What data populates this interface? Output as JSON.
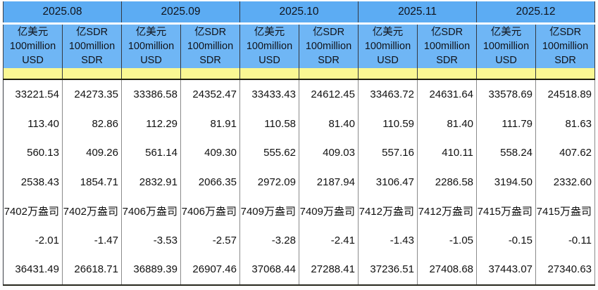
{
  "table": {
    "title_semantic": "official reserve assets monthly table",
    "months": [
      "2025.08",
      "2025.09",
      "2025.10",
      "2025.11",
      "2025.12"
    ],
    "units": {
      "usd": [
        "亿美元",
        "100million",
        "USD"
      ],
      "sdr": [
        "亿SDR",
        "100million",
        "SDR"
      ]
    },
    "rows": [
      [
        "33221.54",
        "24273.35",
        "33386.58",
        "24352.47",
        "33433.43",
        "24612.45",
        "33463.72",
        "24631.64",
        "33578.69",
        "24518.89"
      ],
      [
        "113.40",
        "82.86",
        "112.29",
        "81.91",
        "110.58",
        "81.40",
        "110.59",
        "81.40",
        "111.79",
        "81.63"
      ],
      [
        "560.13",
        "409.26",
        "561.14",
        "409.30",
        "555.62",
        "409.03",
        "557.16",
        "410.11",
        "558.24",
        "407.62"
      ],
      [
        "2538.43",
        "1854.71",
        "2832.91",
        "2066.35",
        "2972.09",
        "2187.94",
        "3106.47",
        "2286.58",
        "3194.50",
        "2332.60"
      ],
      [
        "7402万盎司",
        "7402万盎司",
        "7406万盎司",
        "7406万盎司",
        "7409万盎司",
        "7409万盎司",
        "7412万盎司",
        "7412万盎司",
        "7415万盎司",
        "7415万盎司"
      ],
      [
        "-2.01",
        "-1.47",
        "-3.53",
        "-2.57",
        "-3.28",
        "-2.41",
        "-1.43",
        "-1.05",
        "-0.15",
        "-0.11"
      ],
      [
        "36431.49",
        "26618.71",
        "36889.39",
        "26907.46",
        "37068.44",
        "27288.41",
        "37236.51",
        "27408.68",
        "37443.07",
        "27340.63"
      ]
    ]
  },
  "colors": {
    "month_header_bg": "#5cacf3",
    "unit_header_bg": "#6fb6f5",
    "highlight_bg": "#faf893",
    "header_grid_line": "#343840",
    "body_grid_line": "#8b8b8b",
    "heavy_line": "#1f1f0e"
  }
}
